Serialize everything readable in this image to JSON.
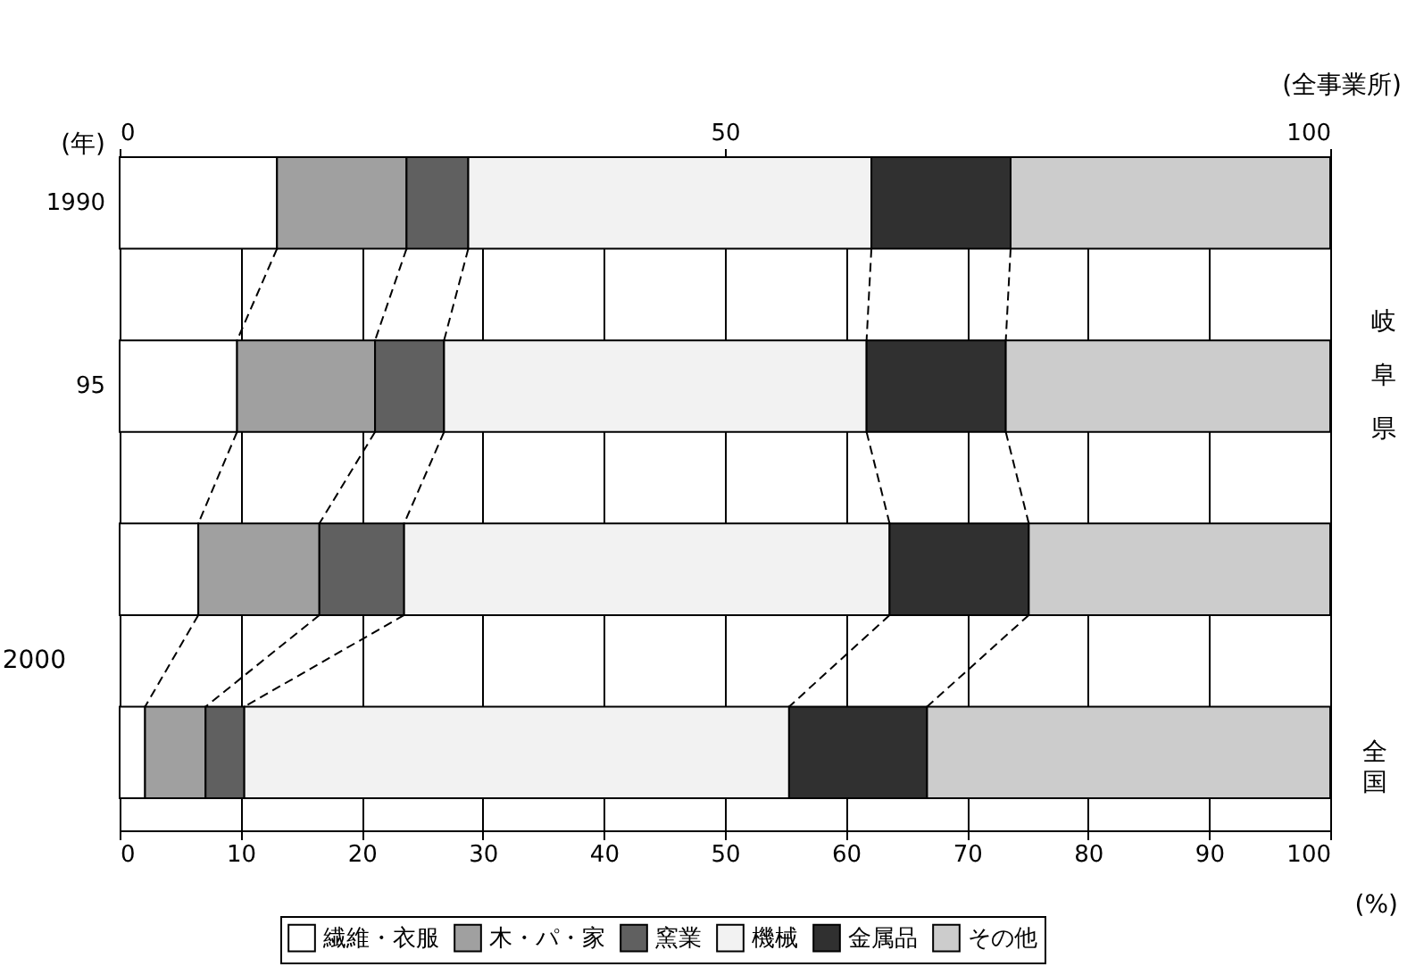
{
  "chart_data": {
    "type": "bar",
    "orientation": "horizontal",
    "stacked": true,
    "categories": [
      "1990",
      "95",
      null,
      null
    ],
    "series": [
      {
        "name": "繊維・衣服",
        "color": "#ffffff",
        "values": [
          13.0,
          9.7,
          6.5,
          2.1
        ]
      },
      {
        "name": "木・パ・家",
        "color": "#a0a0a0",
        "values": [
          10.7,
          11.4,
          10.0,
          5.0
        ]
      },
      {
        "name": "窯業",
        "color": "#606060",
        "values": [
          5.1,
          5.7,
          7.0,
          3.2
        ]
      },
      {
        "name": "機械",
        "color": "#f2f2f2",
        "values": [
          33.3,
          34.9,
          40.1,
          45.0
        ]
      },
      {
        "name": "金属品",
        "color": "#303030",
        "values": [
          11.5,
          11.5,
          11.5,
          11.4
        ]
      },
      {
        "name": "その他",
        "color": "#cccccc",
        "values": [
          26.4,
          26.8,
          24.9,
          33.3
        ]
      }
    ],
    "xlim": [
      0,
      100
    ],
    "xticks": [
      0,
      10,
      20,
      30,
      40,
      50,
      60,
      70,
      80,
      90,
      100
    ],
    "x2lim": [
      0,
      100
    ],
    "x2ticks": [
      0,
      50,
      100
    ],
    "grid": true,
    "legend": "bottom",
    "annotations": [
      "(全事業所)",
      "(年)",
      "(%)",
      "2000",
      "岐阜県",
      "全国"
    ]
  }
}
